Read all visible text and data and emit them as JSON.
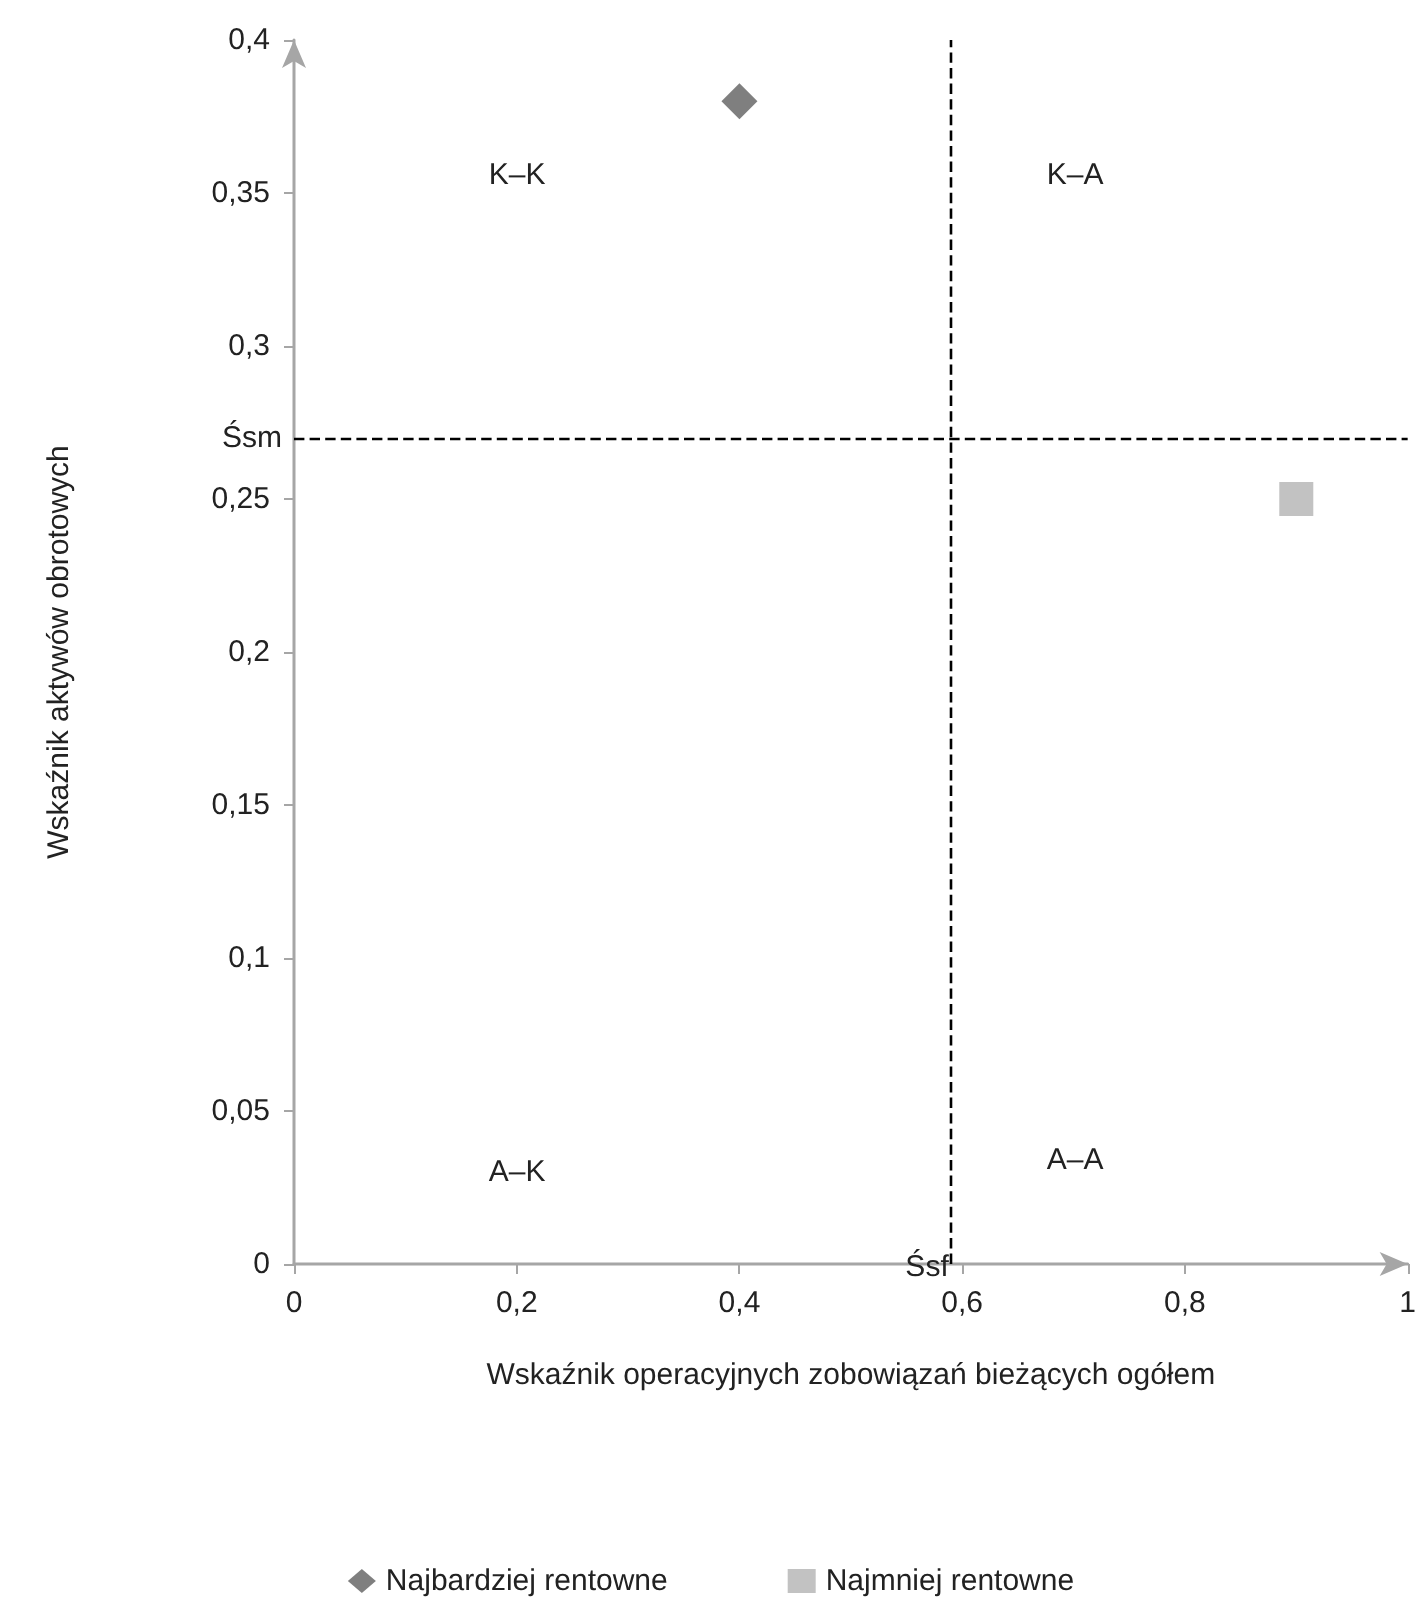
{
  "chart_data": {
    "type": "scatter",
    "xlabel": "Wskaźnik operacyjnych zobowiązań bieżących ogółem",
    "ylabel": "Wskaźnik aktywów obrotowych",
    "series": [
      {
        "name": "Najbardziej rentowne",
        "color": "#5f5f5f",
        "marker": "diamond",
        "x": [
          0.4
        ],
        "values": [
          0.38
        ]
      },
      {
        "name": "Najmniej rentowne",
        "color": "#b3b3b3",
        "marker": "square",
        "x": [
          0.9
        ],
        "values": [
          0.25
        ]
      }
    ],
    "xlim": [
      0,
      1
    ],
    "xticks": [
      0,
      {
        "value": 0.2,
        "label": "0,2"
      },
      {
        "value": 0.4,
        "label": "0,4"
      },
      {
        "value": 0.6,
        "label": "0,6"
      },
      {
        "value": 0.8,
        "label": "0,8"
      },
      1
    ],
    "ylim": [
      0,
      0.4
    ],
    "yticks": [
      0,
      {
        "value": 0.05,
        "label": "0,05"
      },
      {
        "value": 0.1,
        "label": "0,1"
      },
      {
        "value": 0.15,
        "label": "0,15"
      },
      {
        "value": 0.2,
        "label": "0,2"
      },
      {
        "value": 0.25,
        "label": "0,25"
      },
      {
        "value": 0.3,
        "label": "0,3"
      },
      {
        "value": 0.35,
        "label": "0,35"
      },
      {
        "value": 0.4,
        "label": "0,4"
      }
    ],
    "ref_lines": [
      {
        "axis": "y",
        "value": 0.27,
        "label": "Śsm",
        "color": "#000000",
        "line_style": "dashed"
      },
      {
        "axis": "x",
        "value": 0.59,
        "label": "Śsf",
        "color": "#000000",
        "line_style": "dashed"
      }
    ],
    "annotations": [
      "K–K",
      "K–A",
      "A–K",
      "A–A"
    ],
    "grid": false,
    "legend": "bottom"
  }
}
